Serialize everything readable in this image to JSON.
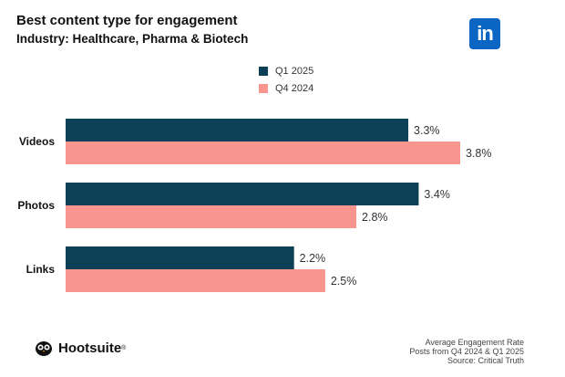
{
  "header": {
    "title": "Best content type for engagement",
    "subtitle": "Industry: Healthcare, Pharma & Biotech",
    "linkedin_logo_text": "in"
  },
  "brand": {
    "name": "Hootsuite",
    "trademark": "®"
  },
  "footer": {
    "line1": "Average Engagement Rate",
    "line2": "Posts from Q4 2024 & Q1 2025",
    "line3": "Source: Critical Truth"
  },
  "colors": {
    "q1_2025": "#0b4056",
    "q4_2024": "#f7958e",
    "linkedin": "#0a66c2"
  },
  "chart_data": {
    "type": "bar",
    "orientation": "horizontal",
    "title": "Best content type for engagement",
    "subtitle": "Industry: Healthcare, Pharma & Biotech",
    "categories": [
      "Videos",
      "Photos",
      "Links"
    ],
    "series": [
      {
        "name": "Q1 2025",
        "values": [
          3.3,
          3.4,
          2.2
        ],
        "labels": [
          "3.3%",
          "3.4%",
          "2.2%"
        ]
      },
      {
        "name": "Q4 2024",
        "values": [
          3.8,
          2.8,
          2.5
        ],
        "labels": [
          "3.8%",
          "2.8%",
          "2.5%"
        ]
      }
    ],
    "xlabel": "Average Engagement Rate",
    "unit": "%",
    "xlim": [
      0,
      3.8
    ],
    "legend": "top-center",
    "grid": false
  }
}
